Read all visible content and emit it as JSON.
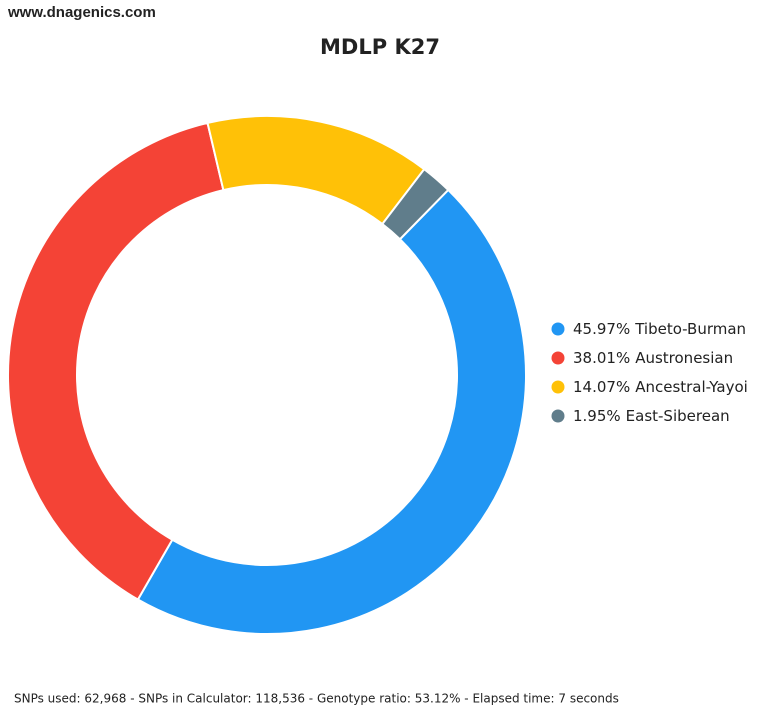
{
  "site": "www.dnagenics.com",
  "chart_data": {
    "type": "donut",
    "title": "MDLP K27",
    "categories": [
      "Tibeto-Burman",
      "Austronesian",
      "Ancestral-Yayoi",
      "East-Siberean"
    ],
    "values": [
      45.97,
      38.01,
      14.07,
      1.95
    ],
    "value_labels": [
      "45.97%",
      "38.01%",
      "14.07%",
      "1.95%"
    ],
    "colors": [
      "#2196f3",
      "#f44336",
      "#ffc107",
      "#607d8b"
    ],
    "legend": "right"
  },
  "footer": "SNPs used: 62,968 - SNPs in Calculator: 118,536 - Genotype ratio: 53.12% - Elapsed time: 7 seconds"
}
